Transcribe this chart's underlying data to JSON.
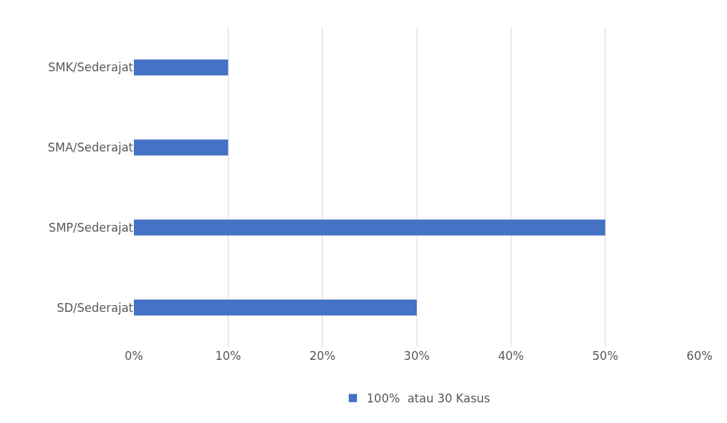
{
  "chart_data": {
    "type": "bar",
    "orientation": "horizontal",
    "categories": [
      "SMK/Sederajat",
      "SMA/Sederajat",
      "SMP/Sederajat",
      "SD/Sederajat"
    ],
    "series": [
      {
        "name": "100%  atau 30 Kasus",
        "color": "#4472c4",
        "values": [
          10,
          10,
          50,
          30
        ]
      }
    ],
    "xlim": [
      0,
      60
    ],
    "xticks": [
      {
        "value": 0,
        "label": "0%"
      },
      {
        "value": 10,
        "label": "10%"
      },
      {
        "value": 20,
        "label": "20%"
      },
      {
        "value": 30,
        "label": "30%"
      },
      {
        "value": 40,
        "label": "40%"
      },
      {
        "value": 50,
        "label": "50%"
      },
      {
        "value": 60,
        "label": "60%"
      }
    ],
    "grid": "x",
    "legend": "bottom"
  }
}
